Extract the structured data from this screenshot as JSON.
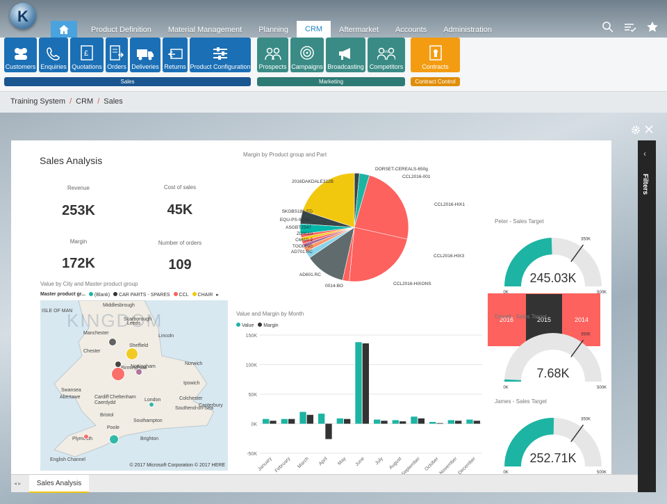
{
  "app": {
    "logo_letter": "K"
  },
  "menu": {
    "items": [
      "Product Definition",
      "Material Management",
      "Planning",
      "CRM",
      "Aftermarket",
      "Accounts",
      "Administration"
    ],
    "active": "CRM"
  },
  "ribbon": {
    "sales": {
      "label": "Sales",
      "buttons": [
        "Customers",
        "Enquiries",
        "Quotations",
        "Orders",
        "Deliveries",
        "Returns",
        "Product Configuration"
      ]
    },
    "marketing": {
      "label": "Marketing",
      "buttons": [
        "Prospects",
        "Campaigns",
        "Broadcasting",
        "Competitors"
      ]
    },
    "contract": {
      "label": "Contract Control",
      "buttons": [
        "Contracts"
      ]
    }
  },
  "breadcrumb": [
    "Training System",
    "CRM",
    "Sales"
  ],
  "report": {
    "title": "Sales Analysis",
    "kpis": [
      {
        "label": "Revenue",
        "value": "253K"
      },
      {
        "label": "Cost of sales",
        "value": "45K"
      },
      {
        "label": "Margin",
        "value": "172K"
      },
      {
        "label": "Number of orders",
        "value": "109"
      }
    ],
    "pie": {
      "title": "Margin by Product group and Part",
      "labels": [
        "DORSET-CEREALS-650g",
        "CCL2016-001",
        "CCL2016-HIX1",
        "CCL2016-HIX3",
        "CCL2016-HIXONS",
        "0014-BO",
        "AD601.RC",
        "AD701.RC",
        "TOOLING",
        "C6610-2",
        "ZD0010",
        "ASGBTJS47",
        "EQU-PS-93381",
        "SKGBS186-ED",
        "2016DAKDALE322B"
      ]
    },
    "map": {
      "title": "Value by City and Master product group",
      "legend_title": "Master product gr...",
      "legend": [
        {
          "name": "(Blank)",
          "color": "#1db4a3"
        },
        {
          "name": "CAR PARTS - SPARES",
          "color": "#333333"
        },
        {
          "name": "CCL",
          "color": "#fd625e"
        },
        {
          "name": "CHAIR",
          "color": "#f2c80f"
        }
      ],
      "watermark": "KINGDOM",
      "cities": [
        "ISLE OF MAN",
        "Middlesbrough",
        "Scarborough",
        "Leeds",
        "Manchester",
        "Sheffield",
        "Chester",
        "Nottingham",
        "Norwich",
        "Birmingham",
        "Ipswich",
        "Cheltenham",
        "Colchester",
        "Swansea",
        "Abertawe",
        "Cardiff",
        "Caerdydd",
        "London",
        "Southend-on-Sea",
        "Canterbury",
        "Bristol",
        "Southampton",
        "Brighton",
        "Poole",
        "Plymouth",
        "English Channel",
        "Lincoln"
      ],
      "copyright": "© 2017 Microsoft Corporation  © 2017 HERE"
    },
    "years": [
      "2016",
      "2015",
      "2014"
    ],
    "gauges": [
      {
        "title": "Peter - Sales Target",
        "value": "245.03K",
        "min": "0K",
        "max": "500K",
        "target": "350K",
        "fill": 0.49
      },
      {
        "title": "Darrell - Sales Target",
        "value": "7.68K",
        "min": "0K",
        "max": "500K",
        "target": "350K",
        "fill": 0.015
      },
      {
        "title": "James - Sales Target",
        "value": "252.71K",
        "min": "0K",
        "max": "500K",
        "target": "350K",
        "fill": 0.505
      }
    ]
  },
  "chart_data": {
    "type": "bar",
    "title": "Value and Margin by Month",
    "legend": [
      "Value",
      "Margin"
    ],
    "categories": [
      "January",
      "February",
      "March",
      "April",
      "May",
      "June",
      "July",
      "August",
      "September",
      "October",
      "November",
      "December"
    ],
    "series": [
      {
        "name": "Value",
        "color": "#1db4a3",
        "values": [
          8,
          8,
          20,
          17,
          9,
          138,
          7,
          6,
          12,
          3,
          6,
          7
        ]
      },
      {
        "name": "Margin",
        "color": "#333333",
        "values": [
          5,
          8,
          15,
          -26,
          8,
          136,
          5,
          4,
          9,
          1,
          5,
          5
        ]
      }
    ],
    "yticks": [
      "150K",
      "100K",
      "50K",
      "0K",
      "-50K"
    ],
    "ylim": [
      -50,
      150
    ]
  },
  "bottom": {
    "tab": "Sales Analysis"
  },
  "filters": {
    "label": "Filters"
  }
}
